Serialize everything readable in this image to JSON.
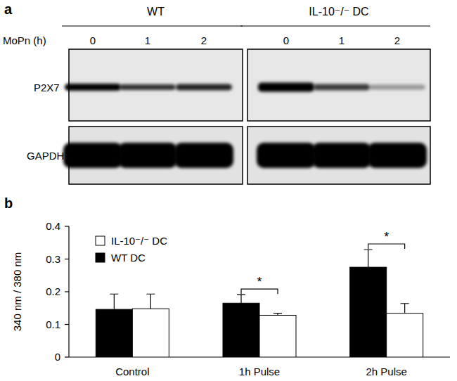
{
  "panel_labels": [
    "a",
    "b"
  ],
  "panel_a": {
    "treatment_label": "MoPn (h)",
    "groups": [
      {
        "title": "WT",
        "lanes": [
          "0",
          "1",
          "2"
        ]
      },
      {
        "title": "IL-10⁻/⁻ DC",
        "lanes": [
          "0",
          "1",
          "2"
        ]
      }
    ],
    "rows": [
      "P2X7",
      "GAPDH"
    ]
  },
  "chart_data": {
    "type": "bar",
    "categories": [
      "Control",
      "1h Pulse",
      "2h Pulse"
    ],
    "y_label": "340 nm / 380 nm",
    "ylim": [
      0,
      0.4
    ],
    "yticks": [
      0,
      0.1,
      0.2,
      0.3,
      0.4
    ],
    "grid": false,
    "legend": "top-left",
    "series": [
      {
        "name": "WT DC",
        "color": "#000000",
        "values": [
          0.146,
          0.165,
          0.275
        ],
        "errors": [
          0.047,
          0.026,
          0.054
        ]
      },
      {
        "name": "IL-10⁻/⁻ DC",
        "color": "#ffffff",
        "values": [
          0.148,
          0.128,
          0.134
        ],
        "errors": [
          0.045,
          0.006,
          0.03
        ]
      }
    ],
    "annotations": [
      {
        "text": "*",
        "category": "1h Pulse"
      },
      {
        "text": "*",
        "category": "2h Pulse"
      }
    ]
  }
}
